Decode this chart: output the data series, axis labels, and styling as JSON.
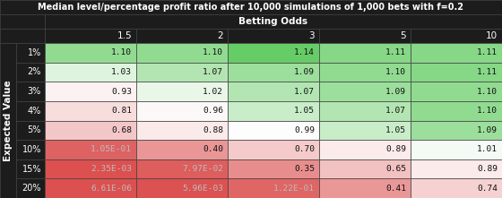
{
  "title": "Median level/percentage profit ratio after 10,000 simulations of 1,000 bets with f=0.2",
  "col_header_label": "Betting Odds",
  "row_header_label": "Expected Value",
  "col_labels": [
    "1.5",
    "2",
    "3",
    "5",
    "10"
  ],
  "row_labels": [
    "1%",
    "2%",
    "3%",
    "4%",
    "5%",
    "10%",
    "15%",
    "20%"
  ],
  "cell_values": [
    [
      "1.10",
      "1.10",
      "1.14",
      "1.11",
      "1.11"
    ],
    [
      "1.03",
      "1.07",
      "1.09",
      "1.10",
      "1.11"
    ],
    [
      "0.93",
      "1.02",
      "1.07",
      "1.09",
      "1.10"
    ],
    [
      "0.81",
      "0.96",
      "1.05",
      "1.07",
      "1.10"
    ],
    [
      "0.68",
      "0.88",
      "0.99",
      "1.05",
      "1.09"
    ],
    [
      "1.05E-01",
      "0.40",
      "0.70",
      "0.89",
      "1.01"
    ],
    [
      "2.35E-03",
      "7.97E-02",
      "0.35",
      "0.65",
      "0.89"
    ],
    [
      "6.61E-06",
      "5.96E-03",
      "1.22E-01",
      "0.41",
      "0.74"
    ]
  ],
  "numeric_values": [
    [
      1.1,
      1.1,
      1.14,
      1.11,
      1.11
    ],
    [
      1.03,
      1.07,
      1.09,
      1.1,
      1.11
    ],
    [
      0.93,
      1.02,
      1.07,
      1.09,
      1.1
    ],
    [
      0.81,
      0.96,
      1.05,
      1.07,
      1.1
    ],
    [
      0.68,
      0.88,
      0.99,
      1.05,
      1.09
    ],
    [
      0.105,
      0.4,
      0.7,
      0.89,
      1.01
    ],
    [
      0.00235,
      0.0797,
      0.35,
      0.65,
      0.89
    ],
    [
      6.61e-06,
      0.00596,
      0.122,
      0.41,
      0.74
    ]
  ],
  "bg_color": "#1c1c1c",
  "border_color": "#444444",
  "title_fontsize": 7.0,
  "header_fontsize": 7.5,
  "cell_fontsize": 6.8,
  "row_label_fontsize": 7.0
}
